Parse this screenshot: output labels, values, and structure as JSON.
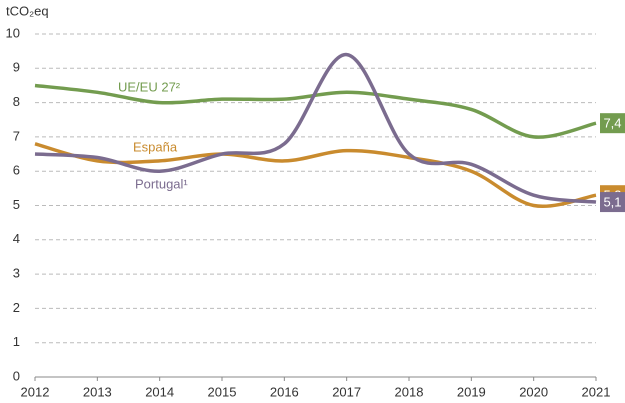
{
  "chart_data": {
    "type": "line",
    "y_label": "tCO₂eq",
    "x": [
      2012,
      2013,
      2014,
      2015,
      2016,
      2017,
      2018,
      2019,
      2020,
      2021
    ],
    "xlim": [
      2012,
      2021
    ],
    "xticks": [
      2012,
      2013,
      2014,
      2015,
      2016,
      2017,
      2018,
      2019,
      2020,
      2021
    ],
    "ylim": [
      0,
      10
    ],
    "yticks": [
      0,
      1,
      2,
      3,
      4,
      5,
      6,
      7,
      8,
      9,
      10
    ],
    "grid": true,
    "series": [
      {
        "name": "UE/EU 27²",
        "color": "#739c4f",
        "values": [
          8.5,
          8.3,
          8.0,
          8.1,
          8.1,
          8.3,
          8.1,
          7.8,
          7.0,
          7.4
        ],
        "value_labels": [
          null,
          null,
          null,
          null,
          null,
          null,
          null,
          null,
          null,
          "7,4"
        ]
      },
      {
        "name": "España",
        "color": "#c98b2e",
        "values": [
          6.8,
          6.3,
          6.3,
          6.5,
          6.3,
          6.6,
          6.4,
          6.0,
          5.0,
          5.3
        ],
        "value_labels": [
          null,
          null,
          null,
          null,
          null,
          null,
          null,
          null,
          null,
          "5,3"
        ]
      },
      {
        "name": "Portugal¹",
        "color": "#7b6c8f",
        "values": [
          6.5,
          6.4,
          6.0,
          6.5,
          6.8,
          9.4,
          6.5,
          6.2,
          5.3,
          5.1
        ],
        "value_labels": [
          null,
          null,
          null,
          null,
          null,
          null,
          null,
          null,
          null,
          "5,1"
        ]
      }
    ]
  }
}
